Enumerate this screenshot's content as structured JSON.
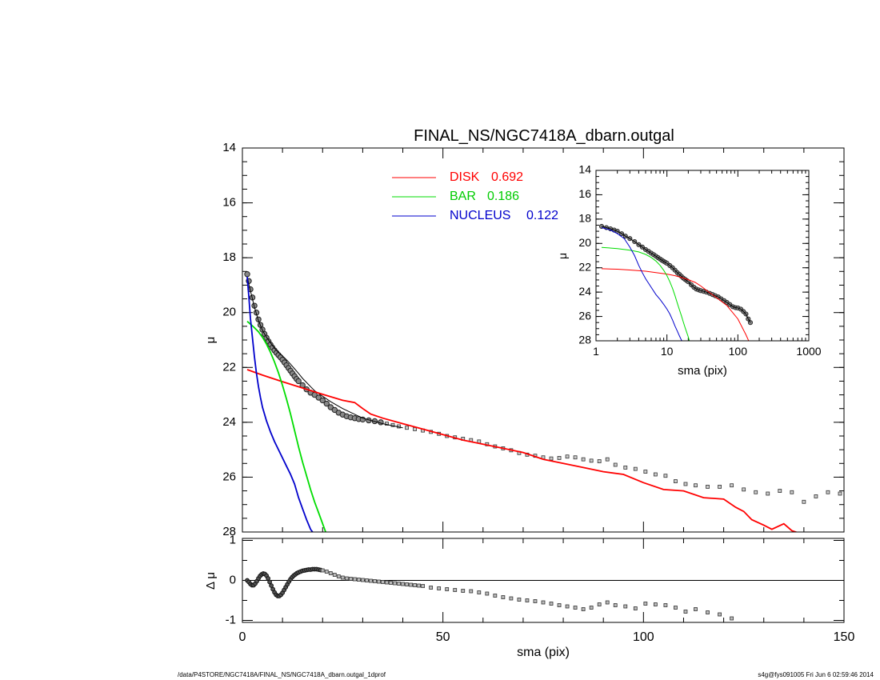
{
  "chart_data": [
    {
      "name": "main-profile",
      "type": "scatter",
      "title": "FINAL_NS/NGC7418A_dbarn.outgal",
      "ylabel": "μ",
      "xlim": [
        0,
        150
      ],
      "ylim": [
        28,
        14
      ],
      "yticks": [
        "14",
        "16",
        "18",
        "20",
        "22",
        "24",
        "26",
        "28"
      ],
      "legend": [
        {
          "label": "DISK",
          "value": "0.692",
          "color": "#ff0000"
        },
        {
          "label": "BAR",
          "value": "0.186",
          "color": "#00dd00"
        },
        {
          "label": "NUCLEUS",
          "value": "0.122",
          "color": "#0000cc"
        }
      ],
      "observed": {
        "x": [
          1.2,
          1.6,
          2.0,
          2.5,
          3.0,
          3.5,
          4.0,
          4.5,
          5.0,
          5.5,
          6.0,
          6.5,
          7.0,
          7.5,
          8.0,
          8.5,
          9.0,
          9.5,
          10.0,
          10.5,
          11.0,
          11.5,
          12.0,
          12.5,
          13.0,
          13.5,
          14.0,
          15.0,
          16.0,
          17.0,
          18.0,
          19.0,
          20.0,
          21.0,
          22.0,
          23.0,
          24.0,
          25.0,
          26.0,
          27.0,
          28.0,
          29.0,
          30.0,
          31.5,
          33.0,
          34.5,
          36.0,
          37.5,
          39.0,
          41.0,
          43.0,
          45.0,
          47.0,
          49.0,
          51.0,
          53.0,
          55.0,
          57.0,
          59.0,
          61.0,
          63.0,
          65.0,
          67.0,
          69.0,
          71.0,
          73.0,
          75.0,
          77.0,
          79.0,
          81.0,
          83.0,
          85.0,
          87.0,
          89.0,
          91.0,
          93.0,
          95.5,
          98.0,
          100.5,
          103.0,
          105.5,
          108.0,
          110.5,
          113.0,
          116.0,
          119.0,
          122.0,
          125.0,
          128.0,
          131.0,
          134.0,
          137.0,
          140.0,
          143.0,
          146.0,
          149.0
        ],
        "y": [
          18.6,
          18.85,
          19.15,
          19.45,
          19.75,
          20.0,
          20.25,
          20.45,
          20.62,
          20.78,
          20.92,
          21.05,
          21.17,
          21.28,
          21.38,
          21.47,
          21.55,
          21.63,
          21.72,
          21.82,
          21.92,
          22.02,
          22.12,
          22.22,
          22.32,
          22.42,
          22.5,
          22.65,
          22.8,
          22.92,
          23.0,
          23.1,
          23.2,
          23.32,
          23.45,
          23.55,
          23.65,
          23.72,
          23.78,
          23.82,
          23.85,
          23.88,
          23.9,
          23.93,
          23.96,
          24.0,
          24.05,
          24.1,
          24.15,
          24.2,
          24.25,
          24.3,
          24.35,
          24.42,
          24.5,
          24.55,
          24.6,
          24.65,
          24.7,
          24.8,
          24.88,
          24.95,
          25.02,
          25.12,
          25.18,
          25.22,
          25.28,
          25.32,
          25.3,
          25.25,
          25.28,
          25.35,
          25.4,
          25.42,
          25.35,
          25.55,
          25.65,
          25.7,
          25.8,
          25.9,
          25.95,
          26.15,
          26.25,
          26.3,
          26.35,
          26.35,
          26.3,
          26.45,
          26.55,
          26.6,
          26.5,
          26.55,
          26.9,
          26.7,
          26.55,
          26.6
        ]
      },
      "model": {
        "x": [
          1.2,
          2,
          3,
          4,
          5,
          6,
          7,
          8,
          9,
          10,
          11,
          12,
          13,
          14,
          15,
          16,
          17,
          18,
          20,
          22,
          25,
          30,
          35,
          40
        ],
        "y": [
          18.7,
          19.2,
          19.8,
          20.3,
          20.65,
          20.9,
          21.1,
          21.3,
          21.45,
          21.58,
          21.72,
          21.88,
          22.05,
          22.22,
          22.4,
          22.55,
          22.7,
          22.85,
          23.05,
          23.25,
          23.5,
          23.85,
          24.05,
          24.2
        ]
      },
      "components": {
        "disk": {
          "x": [
            1.2,
            5,
            10,
            15,
            20,
            25,
            28,
            30,
            32,
            35,
            40,
            45,
            50,
            55,
            60,
            65,
            70,
            75,
            80,
            85,
            90,
            95,
            100,
            105,
            110,
            115,
            120,
            123,
            125,
            127,
            130,
            132,
            135,
            137,
            140
          ],
          "y": [
            22.08,
            22.28,
            22.52,
            22.75,
            22.98,
            23.2,
            23.28,
            23.5,
            23.7,
            23.85,
            24.05,
            24.25,
            24.45,
            24.65,
            24.8,
            24.95,
            25.1,
            25.35,
            25.5,
            25.65,
            25.8,
            25.9,
            26.2,
            26.45,
            26.5,
            26.75,
            26.8,
            27.1,
            27.25,
            27.55,
            27.75,
            27.9,
            27.7,
            27.95,
            28.1
          ]
        },
        "bar": {
          "x": [
            1.2,
            2,
            3,
            4,
            5,
            6,
            7,
            8,
            9,
            10,
            11,
            12,
            13,
            14,
            15,
            16,
            17,
            18,
            19,
            20,
            21
          ],
          "y": [
            20.32,
            20.42,
            20.55,
            20.7,
            20.9,
            21.15,
            21.45,
            21.8,
            22.2,
            22.65,
            23.15,
            23.7,
            24.3,
            24.9,
            25.45,
            25.95,
            26.45,
            26.9,
            27.3,
            27.7,
            28.1
          ]
        },
        "nucleus": {
          "x": [
            1.2,
            1.6,
            2.0,
            2.5,
            3.0,
            3.5,
            4.0,
            4.5,
            5.0,
            6.0,
            7.0,
            8.0,
            9.0,
            10.0,
            11.0,
            12.0,
            13.0,
            14.0,
            15.0,
            16.0,
            17.0,
            18.0,
            19.0
          ],
          "y": [
            18.7,
            19.4,
            20.2,
            20.9,
            21.6,
            22.2,
            22.7,
            23.1,
            23.45,
            23.95,
            24.35,
            24.7,
            25.0,
            25.3,
            25.6,
            25.9,
            26.25,
            26.75,
            27.15,
            27.55,
            27.9,
            28.1,
            28.3
          ]
        }
      }
    },
    {
      "name": "inset-log-profile",
      "type": "line",
      "xlabel": "sma (pix)",
      "ylabel": "μ",
      "xscale": "log",
      "xlim": [
        1,
        1000
      ],
      "ylim": [
        28,
        14
      ],
      "xticks": [
        "1",
        "10",
        "100",
        "1000"
      ],
      "yticks": [
        "14",
        "16",
        "18",
        "20",
        "22",
        "24",
        "26",
        "28"
      ],
      "observed": {
        "x": [
          1.2,
          1.4,
          1.6,
          1.8,
          2.0,
          2.3,
          2.6,
          3.0,
          3.5,
          4.0,
          4.5,
          5.0,
          5.5,
          6.0,
          6.5,
          7.0,
          7.5,
          8.0,
          8.5,
          9.0,
          9.5,
          10,
          11,
          12,
          13,
          14,
          15,
          16,
          17,
          18,
          19,
          20,
          22,
          24,
          26,
          28,
          30,
          33,
          36,
          40,
          44,
          48,
          53,
          58,
          64,
          70,
          77,
          85,
          93,
          100,
          110,
          120,
          130,
          140,
          150
        ],
        "y": [
          18.6,
          18.7,
          18.8,
          18.9,
          19.0,
          19.2,
          19.4,
          19.6,
          19.85,
          20.1,
          20.3,
          20.5,
          20.65,
          20.8,
          20.92,
          21.05,
          21.17,
          21.28,
          21.38,
          21.47,
          21.55,
          21.63,
          21.82,
          22.0,
          22.2,
          22.4,
          22.55,
          22.7,
          22.85,
          22.95,
          23.05,
          23.15,
          23.4,
          23.6,
          23.75,
          23.82,
          23.88,
          23.94,
          24.0,
          24.1,
          24.2,
          24.3,
          24.4,
          24.55,
          24.7,
          24.85,
          25.02,
          25.2,
          25.28,
          25.3,
          25.4,
          25.6,
          25.8,
          26.2,
          26.5
        ]
      },
      "components": {
        "disk": {
          "x": [
            1.2,
            2,
            3,
            5,
            7,
            10,
            13,
            16,
            20,
            25,
            30,
            40,
            50,
            70,
            100,
            130,
            150
          ],
          "y": [
            22.08,
            22.12,
            22.18,
            22.28,
            22.4,
            22.52,
            22.65,
            22.8,
            22.98,
            23.2,
            23.5,
            24.05,
            24.45,
            25.1,
            26.2,
            27.5,
            28.3
          ]
        },
        "bar": {
          "x": [
            1.2,
            2,
            3,
            4,
            5,
            6,
            7,
            8,
            9,
            10,
            11,
            12,
            13,
            14,
            15,
            16,
            17,
            18,
            19,
            20,
            21
          ],
          "y": [
            20.32,
            20.42,
            20.55,
            20.7,
            20.9,
            21.15,
            21.45,
            21.8,
            22.2,
            22.65,
            23.15,
            23.7,
            24.3,
            24.9,
            25.45,
            25.95,
            26.45,
            26.9,
            27.3,
            27.7,
            28.1
          ]
        },
        "nucleus": {
          "x": [
            1.2,
            1.6,
            2.0,
            2.5,
            3.0,
            3.5,
            4.0,
            4.5,
            5.0,
            6.0,
            7.0,
            8.0,
            9.0,
            10,
            11,
            12,
            13,
            14,
            15,
            16,
            17,
            18,
            19
          ],
          "y": [
            18.7,
            18.9,
            19.2,
            19.6,
            20.3,
            21.0,
            21.8,
            22.4,
            22.9,
            23.6,
            24.2,
            24.6,
            25.0,
            25.4,
            25.8,
            26.3,
            26.8,
            27.2,
            27.6,
            27.95,
            28.1,
            28.3,
            28.5
          ]
        }
      }
    },
    {
      "name": "residual-profile",
      "type": "scatter",
      "xlabel": "sma (pix)",
      "ylabel": "Δ μ",
      "xlim": [
        0,
        150
      ],
      "ylim": [
        -1.05,
        1.05
      ],
      "xticks": [
        "0",
        "50",
        "100",
        "150"
      ],
      "yticks": [
        "1",
        "0",
        "-1"
      ],
      "residual": {
        "x": [
          1.2,
          1.6,
          2.0,
          2.4,
          2.8,
          3.2,
          3.6,
          4.0,
          4.4,
          4.8,
          5.2,
          5.6,
          6.0,
          6.4,
          6.8,
          7.2,
          7.6,
          8.0,
          8.4,
          8.8,
          9.2,
          9.6,
          10.0,
          10.4,
          10.8,
          11.2,
          11.6,
          12.0,
          12.4,
          12.8,
          13.2,
          13.6,
          14.0,
          14.5,
          15.0,
          15.5,
          16.0,
          16.5,
          17.0,
          17.5,
          18.0,
          18.5,
          19.0,
          19.5,
          20.0,
          21.0,
          22.0,
          23.0,
          24.0,
          25.0,
          26.0,
          27.0,
          28.0,
          29.0,
          30.0,
          31.0,
          32.0,
          33.0,
          34.0,
          35.0,
          36.0,
          37.0,
          38.0,
          39.0,
          40.0,
          41.0,
          42.0,
          43.0,
          44.0,
          45.0,
          47.0,
          49.0,
          51.0,
          53.0,
          55.0,
          57.0,
          59.0,
          61.0,
          63.0,
          65.0,
          67.0,
          69.0,
          71.0,
          73.0,
          75.0,
          77.0,
          79.0,
          81.0,
          83.0,
          85.0,
          87.0,
          89.0,
          91.0,
          93.0,
          95.5,
          98.0,
          100.5,
          103.0,
          105.5,
          108.0,
          110.5,
          113.0,
          116.0,
          119.0,
          122.0
        ],
        "y": [
          0.0,
          -0.04,
          -0.09,
          -0.12,
          -0.12,
          -0.08,
          -0.02,
          0.05,
          0.11,
          0.15,
          0.17,
          0.16,
          0.12,
          0.05,
          -0.04,
          -0.13,
          -0.22,
          -0.3,
          -0.36,
          -0.39,
          -0.39,
          -0.36,
          -0.31,
          -0.24,
          -0.17,
          -0.1,
          -0.03,
          0.03,
          0.08,
          0.12,
          0.15,
          0.18,
          0.2,
          0.22,
          0.24,
          0.25,
          0.26,
          0.27,
          0.27,
          0.28,
          0.28,
          0.28,
          0.27,
          0.26,
          0.25,
          0.22,
          0.18,
          0.14,
          0.1,
          0.07,
          0.05,
          0.04,
          0.03,
          0.02,
          0.01,
          0.0,
          -0.01,
          -0.02,
          -0.03,
          -0.04,
          -0.05,
          -0.06,
          -0.07,
          -0.08,
          -0.09,
          -0.1,
          -0.11,
          -0.12,
          -0.13,
          -0.14,
          -0.18,
          -0.2,
          -0.22,
          -0.24,
          -0.26,
          -0.27,
          -0.3,
          -0.33,
          -0.38,
          -0.42,
          -0.45,
          -0.48,
          -0.5,
          -0.52,
          -0.55,
          -0.58,
          -0.62,
          -0.65,
          -0.68,
          -0.72,
          -0.68,
          -0.6,
          -0.55,
          -0.62,
          -0.65,
          -0.7,
          -0.58,
          -0.6,
          -0.62,
          -0.68,
          -0.78,
          -0.72,
          -0.8,
          -0.85,
          -0.95
        ]
      }
    }
  ],
  "footer": {
    "path": "/data/P4STORE/NGC7418A/FINAL_NS/NGC7418A_dbarn.outgal_1dprof",
    "stamp": "s4g@fys091005  Fri Jun  6 02:59:46 2014"
  }
}
